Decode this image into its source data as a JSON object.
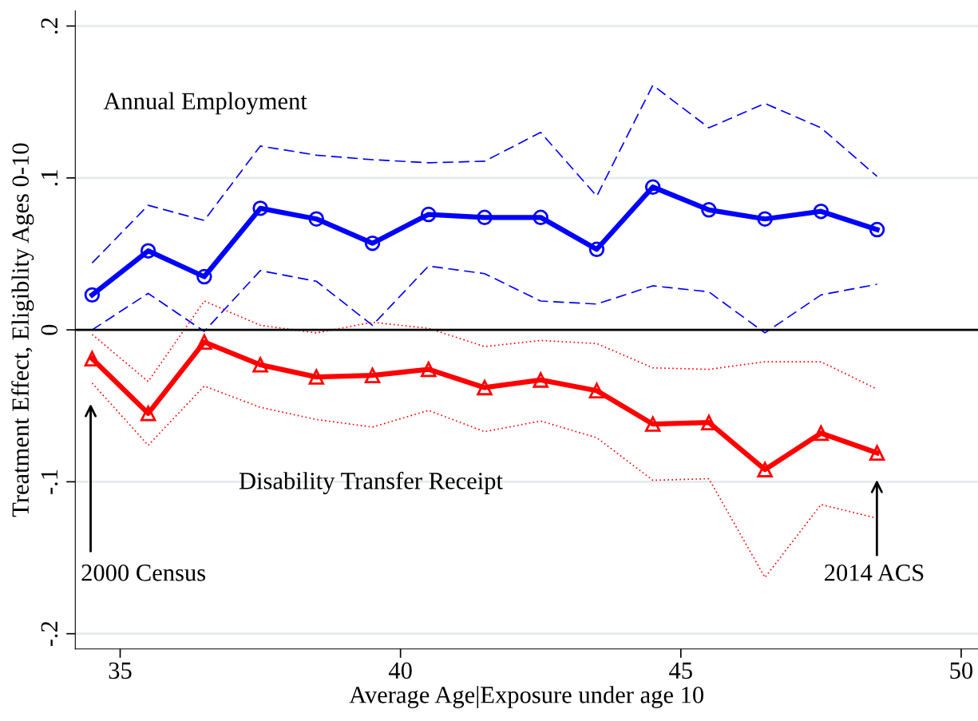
{
  "chart_data": {
    "type": "line",
    "xlabel": "Average Age|Exposure under age 10",
    "ylabel": "Treatment Effect, Eligiblity Ages 0-10",
    "x": [
      34.5,
      35.5,
      36.5,
      37.5,
      38.5,
      39.5,
      40.5,
      41.5,
      42.5,
      43.5,
      44.5,
      45.5,
      46.5,
      47.5,
      48.5
    ],
    "xlim": [
      34.2,
      50.3
    ],
    "xticks": [
      35,
      40,
      45,
      50
    ],
    "ylim": [
      -0.21,
      0.21
    ],
    "yticks": [
      {
        "value": -0.2,
        "label": "-.2"
      },
      {
        "value": -0.1,
        "label": "-.1"
      },
      {
        "value": 0,
        "label": "0"
      },
      {
        "value": 0.1,
        "label": ".1"
      },
      {
        "value": 0.2,
        "label": ".2"
      }
    ],
    "grid": "y",
    "legend": false,
    "series": [
      {
        "color": "#0000ff",
        "marker": "circle",
        "line_style": "solid",
        "values": [
          0.023,
          0.052,
          0.035,
          0.08,
          0.073,
          0.057,
          0.076,
          0.074,
          0.074,
          0.053,
          0.094,
          0.079,
          0.073,
          0.078,
          0.066
        ]
      },
      {
        "color": "#0000ff",
        "marker": "none",
        "line_style": "dashed",
        "values": [
          0.044,
          0.082,
          0.072,
          0.121,
          0.115,
          0.112,
          0.11,
          0.111,
          0.13,
          0.088,
          0.161,
          0.133,
          0.149,
          0.133,
          0.101
        ]
      },
      {
        "color": "#0000ff",
        "marker": "none",
        "line_style": "dashed",
        "values": [
          0.0,
          0.024,
          -0.001,
          0.039,
          0.032,
          0.003,
          0.042,
          0.037,
          0.019,
          0.017,
          0.029,
          0.025,
          -0.002,
          0.023,
          0.03
        ]
      },
      {
        "color": "#ff0000",
        "marker": "triangle",
        "line_style": "solid",
        "values": [
          -0.019,
          -0.055,
          -0.008,
          -0.023,
          -0.031,
          -0.03,
          -0.026,
          -0.038,
          -0.033,
          -0.04,
          -0.062,
          -0.061,
          -0.092,
          -0.068,
          -0.081
        ]
      },
      {
        "color": "#ff0000",
        "marker": "none",
        "line_style": "dotted",
        "values": [
          -0.003,
          -0.034,
          0.019,
          0.003,
          -0.002,
          0.005,
          0.001,
          -0.011,
          -0.007,
          -0.009,
          -0.025,
          -0.026,
          -0.021,
          -0.021,
          -0.039
        ]
      },
      {
        "color": "#ff0000",
        "marker": "none",
        "line_style": "dotted",
        "values": [
          -0.035,
          -0.076,
          -0.037,
          -0.051,
          -0.059,
          -0.064,
          -0.053,
          -0.067,
          -0.06,
          -0.071,
          -0.099,
          -0.098,
          -0.163,
          -0.115,
          -0.124
        ]
      }
    ],
    "ref_lines": [
      {
        "axis": "y",
        "value": 0,
        "color": "#000000",
        "line_style": "solid"
      }
    ],
    "annotations": [
      "Annual Employment",
      "Disability Transfer Receipt",
      "2000 Census",
      "2014 ACS"
    ]
  }
}
